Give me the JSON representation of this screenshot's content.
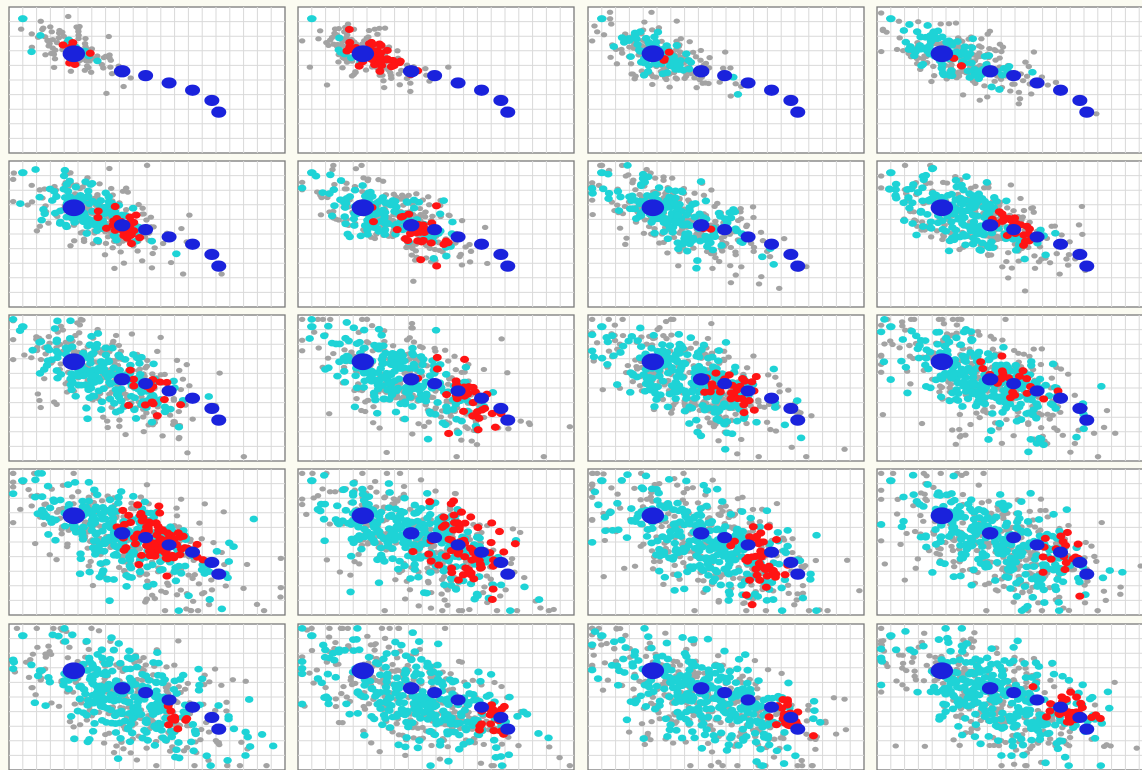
{
  "figure": {
    "rows": 5,
    "cols": 4,
    "colors": {
      "background": "#fbfbf1",
      "panel_bg": "#ffffff",
      "frame": "#7a7a7a",
      "grid": "#d9d9d9",
      "grey_points": "#a3a3a3",
      "cyan_points": "#1ed3d6",
      "red_points": "#ff1414",
      "blue_points": "#1a22dc"
    }
  },
  "chart_data": {
    "type": "scatter",
    "title": "",
    "xlabel": "",
    "ylabel": "",
    "xlim": [
      0,
      20
    ],
    "ylim": [
      0,
      10
    ],
    "grid": true,
    "legend": "none",
    "axes_labels_shown": false,
    "shared_elements": {
      "cyan_marker": {
        "x": 1,
        "y": 9.2
      },
      "trajectory": [
        {
          "x": 4.7,
          "y": 6.8,
          "size": 1.5
        },
        {
          "x": 8.2,
          "y": 5.6,
          "size": 1.1
        },
        {
          "x": 9.9,
          "y": 5.3,
          "size": 1.0
        },
        {
          "x": 11.6,
          "y": 4.8,
          "size": 1.0
        },
        {
          "x": 13.3,
          "y": 4.3,
          "size": 1.0
        },
        {
          "x": 14.7,
          "y": 3.6,
          "size": 1.0
        },
        {
          "x": 15.2,
          "y": 2.8,
          "size": 1.0
        }
      ]
    },
    "panels": [
      {
        "index": 1,
        "grey": {
          "cx": 4.5,
          "cy": 7.0,
          "rx": 3.0,
          "ry": 1.4,
          "n": 90
        },
        "cyan": {
          "cx": 4.5,
          "cy": 7.2,
          "rx": 1.6,
          "ry": 0.8,
          "n": 10
        },
        "red": {
          "cx": 4.6,
          "cy": 6.9,
          "rx": 1.8,
          "ry": 0.7,
          "n": 8
        }
      },
      {
        "index": 2,
        "grey": {
          "cx": 5.0,
          "cy": 6.8,
          "rx": 3.5,
          "ry": 1.6,
          "n": 130
        },
        "cyan": {
          "cx": 4.5,
          "cy": 7.0,
          "rx": 1.5,
          "ry": 0.8,
          "n": 10
        },
        "red": {
          "cx": 5.4,
          "cy": 6.7,
          "rx": 1.9,
          "ry": 0.8,
          "n": 45
        }
      },
      {
        "index": 3,
        "grey": {
          "cx": 5.5,
          "cy": 6.6,
          "rx": 4.2,
          "ry": 1.7,
          "n": 150
        },
        "cyan": {
          "cx": 5.0,
          "cy": 6.7,
          "rx": 3.0,
          "ry": 1.3,
          "n": 80
        },
        "red": {
          "cx": 5.6,
          "cy": 6.5,
          "rx": 0.6,
          "ry": 0.6,
          "n": 3
        }
      },
      {
        "index": 4,
        "grey": {
          "cx": 6.0,
          "cy": 6.4,
          "rx": 4.6,
          "ry": 1.9,
          "n": 170
        },
        "cyan": {
          "cx": 5.5,
          "cy": 6.6,
          "rx": 3.4,
          "ry": 1.4,
          "n": 100
        },
        "red": {
          "cx": 6.2,
          "cy": 6.0,
          "rx": 0.8,
          "ry": 0.6,
          "n": 3
        }
      },
      {
        "index": 5,
        "grey": {
          "cx": 6.5,
          "cy": 6.2,
          "rx": 5.0,
          "ry": 2.2,
          "n": 190
        },
        "cyan": {
          "cx": 6.0,
          "cy": 6.4,
          "rx": 3.6,
          "ry": 1.6,
          "n": 120
        },
        "red": {
          "cx": 8.2,
          "cy": 5.6,
          "rx": 1.5,
          "ry": 0.8,
          "n": 28
        }
      },
      {
        "index": 6,
        "grey": {
          "cx": 7.0,
          "cy": 6.0,
          "rx": 5.2,
          "ry": 2.3,
          "n": 200
        },
        "cyan": {
          "cx": 6.2,
          "cy": 6.2,
          "rx": 3.8,
          "ry": 1.7,
          "n": 130
        },
        "red": {
          "cx": 8.4,
          "cy": 5.2,
          "rx": 2.0,
          "ry": 1.1,
          "n": 32
        }
      },
      {
        "index": 7,
        "grey": {
          "cx": 7.0,
          "cy": 6.0,
          "rx": 5.4,
          "ry": 2.4,
          "n": 210
        },
        "cyan": {
          "cx": 6.5,
          "cy": 6.2,
          "rx": 4.2,
          "ry": 1.8,
          "n": 170
        },
        "red": {
          "cx": 8.6,
          "cy": 5.5,
          "rx": 0.6,
          "ry": 0.5,
          "n": 2
        }
      },
      {
        "index": 8,
        "grey": {
          "cx": 7.5,
          "cy": 5.8,
          "rx": 5.6,
          "ry": 2.6,
          "n": 220
        },
        "cyan": {
          "cx": 6.8,
          "cy": 6.0,
          "rx": 4.4,
          "ry": 1.9,
          "n": 180
        },
        "red": {
          "cx": 9.8,
          "cy": 5.3,
          "rx": 1.6,
          "ry": 0.9,
          "n": 26
        }
      },
      {
        "index": 9,
        "grey": {
          "cx": 7.5,
          "cy": 5.6,
          "rx": 6.0,
          "ry": 2.8,
          "n": 230
        },
        "cyan": {
          "cx": 7.0,
          "cy": 5.8,
          "rx": 4.6,
          "ry": 2.0,
          "n": 190
        },
        "red": {
          "cx": 10.0,
          "cy": 4.8,
          "rx": 1.6,
          "ry": 1.6,
          "n": 16
        }
      },
      {
        "index": 10,
        "grey": {
          "cx": 8.0,
          "cy": 5.5,
          "rx": 6.2,
          "ry": 3.0,
          "n": 240
        },
        "cyan": {
          "cx": 7.4,
          "cy": 5.7,
          "rx": 4.8,
          "ry": 2.2,
          "n": 210
        },
        "red": {
          "cx": 11.8,
          "cy": 4.6,
          "rx": 2.4,
          "ry": 1.6,
          "n": 32
        }
      },
      {
        "index": 11,
        "grey": {
          "cx": 8.0,
          "cy": 5.4,
          "rx": 6.4,
          "ry": 3.1,
          "n": 250
        },
        "cyan": {
          "cx": 7.6,
          "cy": 5.6,
          "rx": 5.0,
          "ry": 2.4,
          "n": 230
        },
        "red": {
          "cx": 10.6,
          "cy": 4.8,
          "rx": 2.0,
          "ry": 1.4,
          "n": 30
        }
      },
      {
        "index": 12,
        "grey": {
          "cx": 8.2,
          "cy": 5.3,
          "rx": 6.6,
          "ry": 3.2,
          "n": 250
        },
        "cyan": {
          "cx": 7.8,
          "cy": 5.5,
          "rx": 5.2,
          "ry": 2.5,
          "n": 240
        },
        "red": {
          "cx": 10.0,
          "cy": 5.6,
          "rx": 2.2,
          "ry": 1.0,
          "n": 22
        }
      },
      {
        "index": 13,
        "grey": {
          "cx": 8.5,
          "cy": 5.2,
          "rx": 7.0,
          "ry": 3.3,
          "n": 260
        },
        "cyan": {
          "cx": 8.0,
          "cy": 5.4,
          "rx": 5.4,
          "ry": 2.6,
          "n": 250
        },
        "red": {
          "cx": 10.5,
          "cy": 5.2,
          "rx": 2.8,
          "ry": 1.4,
          "n": 90
        }
      },
      {
        "index": 14,
        "grey": {
          "cx": 8.5,
          "cy": 5.0,
          "rx": 7.2,
          "ry": 3.4,
          "n": 260
        },
        "cyan": {
          "cx": 8.2,
          "cy": 5.2,
          "rx": 5.6,
          "ry": 2.7,
          "n": 260
        },
        "red": {
          "cx": 12.0,
          "cy": 4.4,
          "rx": 2.6,
          "ry": 2.4,
          "n": 70
        }
      },
      {
        "index": 15,
        "grey": {
          "cx": 8.6,
          "cy": 5.0,
          "rx": 7.2,
          "ry": 3.4,
          "n": 260
        },
        "cyan": {
          "cx": 8.3,
          "cy": 5.1,
          "rx": 5.8,
          "ry": 2.8,
          "n": 270
        },
        "red": {
          "cx": 12.4,
          "cy": 3.8,
          "rx": 1.8,
          "ry": 2.0,
          "n": 40
        }
      },
      {
        "index": 16,
        "grey": {
          "cx": 8.6,
          "cy": 5.0,
          "rx": 7.2,
          "ry": 3.4,
          "n": 260
        },
        "cyan": {
          "cx": 8.4,
          "cy": 5.1,
          "rx": 5.8,
          "ry": 2.8,
          "n": 270
        },
        "red": {
          "cx": 13.4,
          "cy": 4.0,
          "rx": 1.8,
          "ry": 1.6,
          "n": 18
        }
      },
      {
        "index": 17,
        "grey": {
          "cx": 8.6,
          "cy": 5.0,
          "rx": 7.4,
          "ry": 3.5,
          "n": 260
        },
        "cyan": {
          "cx": 8.5,
          "cy": 5.0,
          "rx": 6.0,
          "ry": 2.9,
          "n": 280
        },
        "red": {
          "cx": 12.0,
          "cy": 3.6,
          "rx": 1.2,
          "ry": 1.0,
          "n": 10
        }
      },
      {
        "index": 18,
        "grey": {
          "cx": 8.6,
          "cy": 5.0,
          "rx": 7.4,
          "ry": 3.5,
          "n": 260
        },
        "cyan": {
          "cx": 8.5,
          "cy": 5.0,
          "rx": 6.0,
          "ry": 2.9,
          "n": 280
        },
        "red": {
          "cx": 14.0,
          "cy": 3.8,
          "rx": 1.6,
          "ry": 1.2,
          "n": 22
        }
      },
      {
        "index": 19,
        "grey": {
          "cx": 8.6,
          "cy": 5.0,
          "rx": 7.4,
          "ry": 3.5,
          "n": 260
        },
        "cyan": {
          "cx": 8.5,
          "cy": 5.0,
          "rx": 6.0,
          "ry": 2.9,
          "n": 280
        },
        "red": {
          "cx": 14.2,
          "cy": 3.8,
          "rx": 1.3,
          "ry": 1.0,
          "n": 26
        }
      },
      {
        "index": 20,
        "grey": {
          "cx": 8.6,
          "cy": 5.0,
          "rx": 7.4,
          "ry": 3.5,
          "n": 260
        },
        "cyan": {
          "cx": 8.5,
          "cy": 5.0,
          "rx": 6.0,
          "ry": 2.9,
          "n": 280
        },
        "red": {
          "cx": 14.0,
          "cy": 4.0,
          "rx": 1.7,
          "ry": 1.2,
          "n": 32
        }
      }
    ]
  }
}
